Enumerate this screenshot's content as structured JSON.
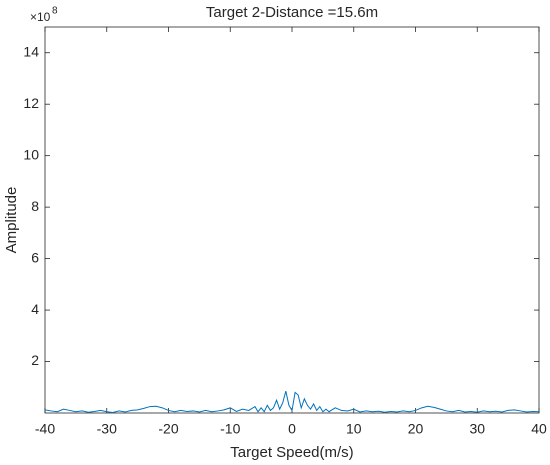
{
  "chart_data": {
    "type": "line",
    "title": "Target 2-Distance =15.6m",
    "x_label": "Target Speed(m/s)",
    "y_label": "Amplitude",
    "y_multiplier_base": "×10",
    "y_multiplier_exp": "8",
    "x": [
      -40,
      -39,
      -38,
      -37,
      -36,
      -35,
      -34,
      -33,
      -32,
      -31,
      -30,
      -29,
      -28,
      -27,
      -26,
      -25,
      -24,
      -23,
      -22,
      -21,
      -20,
      -19,
      -18,
      -17,
      -16,
      -15,
      -14,
      -13,
      -12,
      -11,
      -10,
      -9,
      -8,
      -7,
      -6,
      -5.5,
      -5,
      -4.5,
      -4,
      -3.5,
      -3,
      -2.5,
      -2,
      -1.5,
      -1,
      -0.5,
      0,
      0.5,
      1,
      1.5,
      2,
      2.5,
      3,
      3.5,
      4,
      4.5,
      5,
      5.5,
      6,
      7,
      8,
      9,
      10,
      11,
      12,
      13,
      14,
      15,
      16,
      17,
      18,
      19,
      20,
      21,
      22,
      23,
      24,
      25,
      26,
      27,
      28,
      29,
      30,
      31,
      32,
      33,
      34,
      35,
      36,
      37,
      38,
      39,
      40
    ],
    "series": [
      {
        "color": "#0072bd",
        "values": [
          0.12,
          0.08,
          0.05,
          0.15,
          0.1,
          0.05,
          0.08,
          0.03,
          0.06,
          0.1,
          0.05,
          0.02,
          0.08,
          0.04,
          0.1,
          0.12,
          0.18,
          0.25,
          0.26,
          0.2,
          0.1,
          0.05,
          0.1,
          0.06,
          0.08,
          0.04,
          0.1,
          0.05,
          0.08,
          0.12,
          0.2,
          0.06,
          0.15,
          0.1,
          0.25,
          0.05,
          0.2,
          0.05,
          0.3,
          0.1,
          0.2,
          0.5,
          0.15,
          0.4,
          0.85,
          0.3,
          0.1,
          0.8,
          0.7,
          0.2,
          0.55,
          0.3,
          0.15,
          0.35,
          0.1,
          0.25,
          0.05,
          0.15,
          0.05,
          0.2,
          0.1,
          0.08,
          0.15,
          0.04,
          0.08,
          0.05,
          0.07,
          0.03,
          0.06,
          0.04,
          0.08,
          0.05,
          0.1,
          0.2,
          0.26,
          0.22,
          0.15,
          0.08,
          0.05,
          0.1,
          0.04,
          0.06,
          0.03,
          0.08,
          0.05,
          0.07,
          0.04,
          0.1,
          0.12,
          0.08,
          0.04,
          0.06,
          0.05
        ]
      }
    ],
    "xlim": [
      -40,
      40
    ],
    "ylim": [
      0,
      15
    ],
    "xticks": [
      -40,
      -30,
      -20,
      -10,
      0,
      10,
      20,
      30,
      40
    ],
    "yticks": [
      2,
      4,
      6,
      8,
      10,
      12,
      14
    ]
  }
}
